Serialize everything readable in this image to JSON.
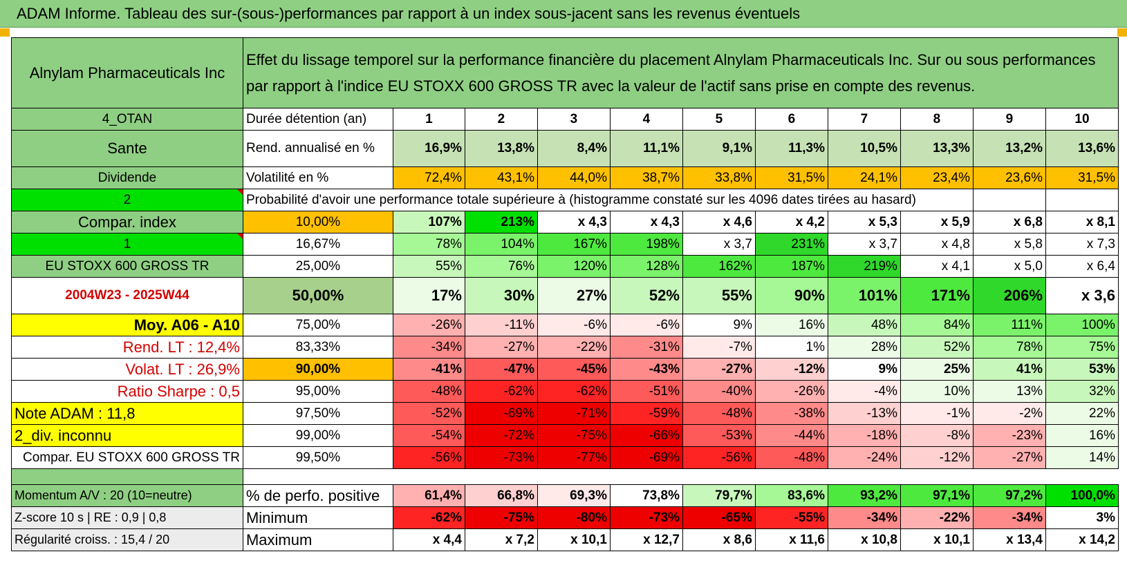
{
  "title": "ADAM Informe. Tableau des sur-(sous-)performances par rapport à un index sous-jacent sans les revenus éventuels",
  "header": {
    "asset": "Alnylam Pharmaceuticals Inc",
    "description": "Effet du lissage temporel sur la performance financière du placement Alnylam Pharmaceuticals Inc. Sur ou sous performances par rapport à l'indice EU STOXX 600 GROSS TR avec la valeur de l'actif sans prise en compte des revenus."
  },
  "side": {
    "otan": "4_OTAN",
    "sector": "Sante",
    "dividend": "Dividende",
    "num2": "2",
    "compar_index": "Compar. index",
    "num1": "1",
    "index_name": "EU STOXX 600 GROSS TR",
    "period": "2004W23 - 2025W44",
    "moy": "Moy. A06 - A10",
    "rend_lt": "Rend. LT :    12,4%",
    "volat_lt": "Volat. LT :    26,9%",
    "sharpe": "Ratio Sharpe :     0,5",
    "note": "Note ADAM : 11,8",
    "div": "2_div. inconnu",
    "compar_full": "Compar. EU STOXX 600 GROSS TR",
    "momentum": "Momentum A/V : 20 (10=neutre)",
    "zscore": "Z-score 10 s | RE : 0,9 | 0,8",
    "regularite": "Régularité croiss. : 15,4 / 20"
  },
  "labels": {
    "duree": "Durée détention (an)",
    "rend": "Rend. annualisé en %",
    "vol": "Volatilité en %",
    "proba": "Probabilité d'avoir une performance totale supérieure à (histogramme constaté sur les 4096 dates tirées au hasard)",
    "pos": "% de perfo. positive",
    "min": "Minimum",
    "max": "Maximum"
  },
  "years": [
    "1",
    "2",
    "3",
    "4",
    "5",
    "6",
    "7",
    "8",
    "9",
    "10"
  ],
  "rend": [
    "16,9%",
    "13,8%",
    "8,4%",
    "11,1%",
    "9,1%",
    "11,3%",
    "10,5%",
    "13,3%",
    "13,2%",
    "13,6%"
  ],
  "vol": [
    "72,4%",
    "43,1%",
    "44,0%",
    "38,7%",
    "33,8%",
    "31,5%",
    "24,1%",
    "23,4%",
    "23,6%",
    "31,5%"
  ],
  "quantiles": [
    {
      "q": "10,00%",
      "values": [
        "107%",
        "213%",
        "x 4,3",
        "x 4,3",
        "x 4,6",
        "x 4,2",
        "x 5,3",
        "x 5,9",
        "x 6,8",
        "x 8,1"
      ]
    },
    {
      "q": "16,67%",
      "values": [
        "78%",
        "104%",
        "167%",
        "198%",
        "x 3,7",
        "231%",
        "x 3,7",
        "x 4,8",
        "x 5,8",
        "x 7,3"
      ]
    },
    {
      "q": "25,00%",
      "values": [
        "55%",
        "76%",
        "120%",
        "128%",
        "162%",
        "187%",
        "219%",
        "x 4,1",
        "x 5,0",
        "x 6,4"
      ]
    },
    {
      "q": "50,00%",
      "values": [
        "17%",
        "30%",
        "27%",
        "52%",
        "55%",
        "90%",
        "101%",
        "171%",
        "206%",
        "x 3,6"
      ]
    },
    {
      "q": "75,00%",
      "values": [
        "-26%",
        "-11%",
        "-6%",
        "-6%",
        "9%",
        "16%",
        "48%",
        "84%",
        "111%",
        "100%"
      ]
    },
    {
      "q": "83,33%",
      "values": [
        "-34%",
        "-27%",
        "-22%",
        "-31%",
        "-7%",
        "1%",
        "28%",
        "52%",
        "78%",
        "75%"
      ]
    },
    {
      "q": "90,00%",
      "values": [
        "-41%",
        "-47%",
        "-45%",
        "-43%",
        "-27%",
        "-12%",
        "9%",
        "25%",
        "41%",
        "53%"
      ]
    },
    {
      "q": "95,00%",
      "values": [
        "-48%",
        "-62%",
        "-62%",
        "-51%",
        "-40%",
        "-26%",
        "-4%",
        "10%",
        "13%",
        "32%"
      ]
    },
    {
      "q": "97,50%",
      "values": [
        "-52%",
        "-69%",
        "-71%",
        "-59%",
        "-48%",
        "-38%",
        "-13%",
        "-1%",
        "-2%",
        "22%"
      ]
    },
    {
      "q": "99,00%",
      "values": [
        "-54%",
        "-72%",
        "-75%",
        "-66%",
        "-53%",
        "-44%",
        "-18%",
        "-8%",
        "-23%",
        "16%"
      ]
    },
    {
      "q": "99,50%",
      "values": [
        "-56%",
        "-73%",
        "-77%",
        "-69%",
        "-56%",
        "-48%",
        "-24%",
        "-12%",
        "-27%",
        "14%"
      ]
    }
  ],
  "pos": [
    "61,4%",
    "66,8%",
    "69,3%",
    "73,8%",
    "79,7%",
    "83,6%",
    "93,2%",
    "97,1%",
    "97,2%",
    "100,0%"
  ],
  "min": [
    "-62%",
    "-75%",
    "-80%",
    "-73%",
    "-65%",
    "-55%",
    "-34%",
    "-22%",
    "-34%",
    "3%"
  ],
  "max": [
    "x 4,4",
    "x 7,2",
    "x 10,1",
    "x 12,7",
    "x 8,6",
    "x 11,6",
    "x 10,8",
    "x 10,1",
    "x 13,4",
    "x 14,2"
  ]
}
